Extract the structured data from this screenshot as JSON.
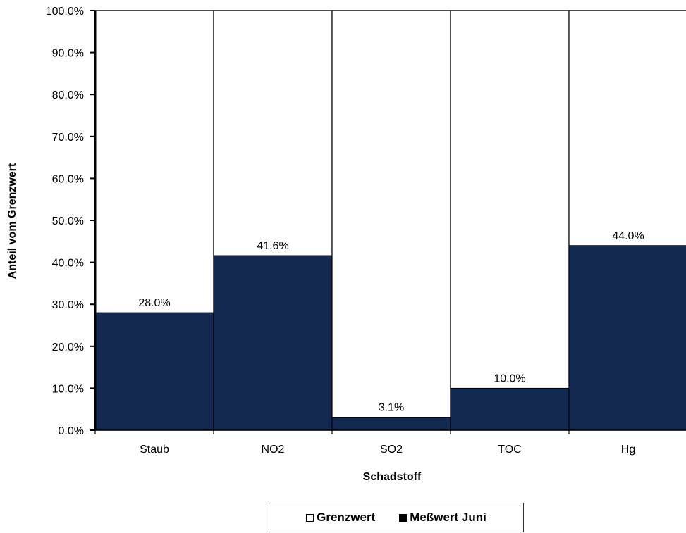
{
  "chart_data": {
    "type": "bar",
    "title": "",
    "xlabel": "Schadstoff",
    "ylabel": "Anteil vom Grenzwert",
    "ylim": [
      0,
      100
    ],
    "ytick_step": 10,
    "ytick_labels": [
      "0.0%",
      "10.0%",
      "20.0%",
      "30.0%",
      "40.0%",
      "50.0%",
      "60.0%",
      "70.0%",
      "80.0%",
      "90.0%",
      "100.0%"
    ],
    "categories": [
      "Staub",
      "NO2",
      "SO2",
      "TOC",
      "Hg"
    ],
    "series": [
      {
        "name": "Grenzwert",
        "values": [
          100,
          100,
          100,
          100,
          100
        ],
        "color": "#ffffff"
      },
      {
        "name": "Meßwert Juni",
        "values": [
          28.0,
          41.6,
          3.1,
          10.0,
          44.0
        ],
        "color": "#13294f",
        "labels": [
          "28.0%",
          "41.6%",
          "3.1%",
          "10.0%",
          "44.0%"
        ]
      }
    ],
    "legend": "bottom",
    "grid": false
  }
}
